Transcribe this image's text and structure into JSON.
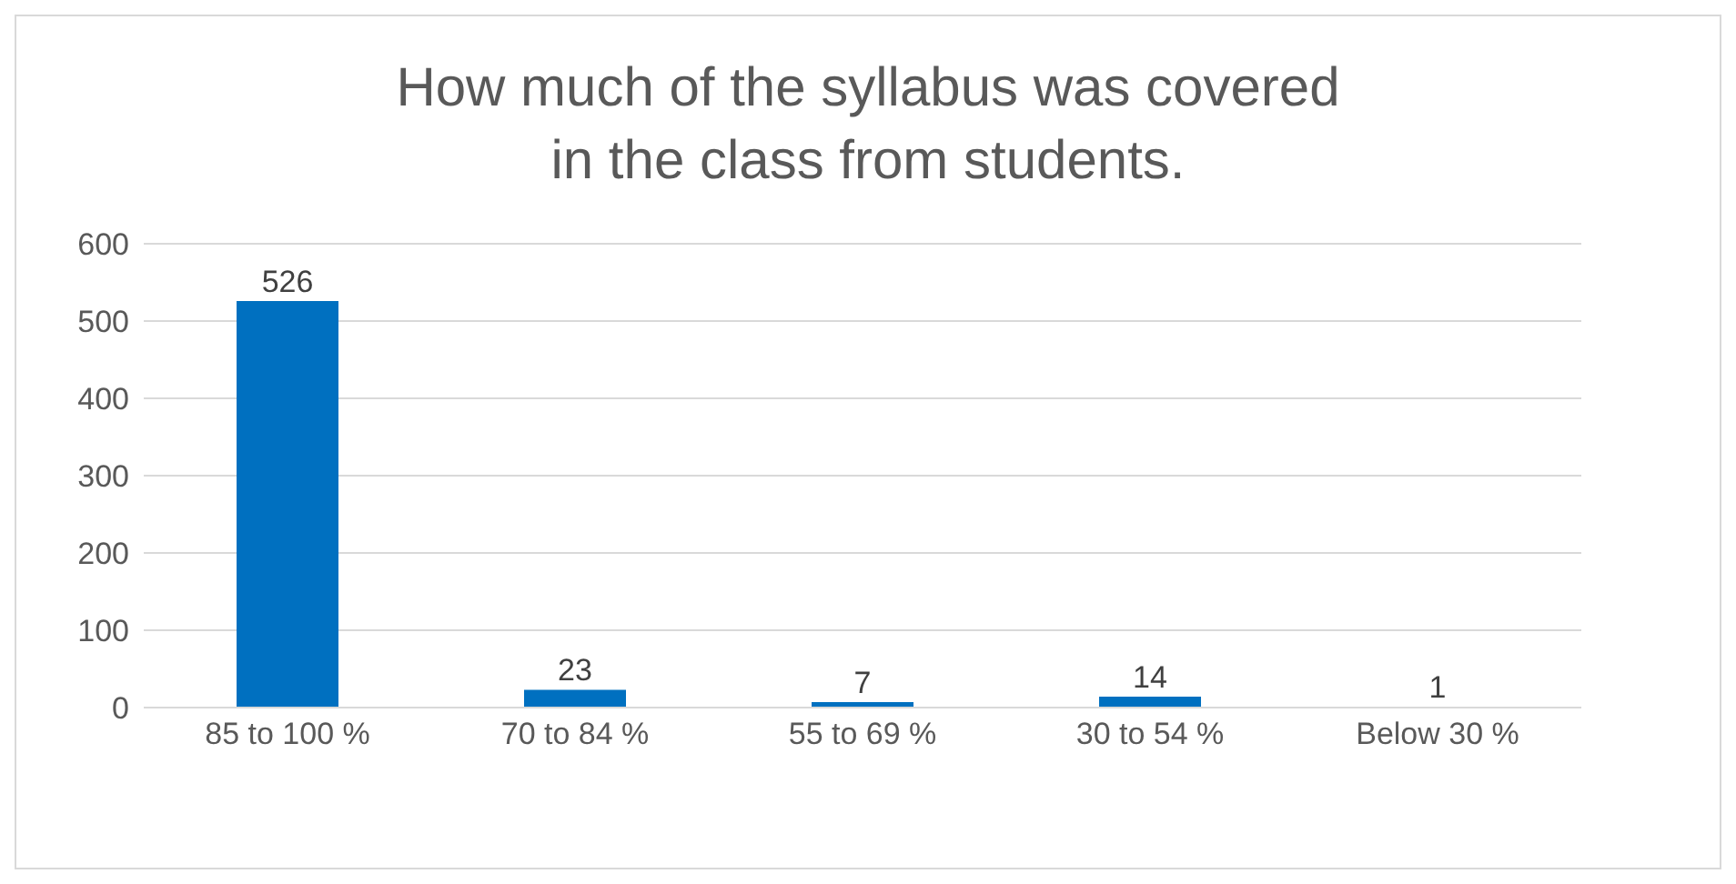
{
  "chart_data": {
    "type": "bar",
    "title": "How much of the syllabus was covered in the class from students.",
    "categories": [
      "85 to 100 %",
      "70 to 84 %",
      "55 to 69 %",
      "30 to 54 %",
      "Below 30 %"
    ],
    "values": [
      526,
      23,
      7,
      14,
      1
    ],
    "color": "#0070c0",
    "ylim": [
      0,
      600
    ],
    "yticks": [
      0,
      100,
      200,
      300,
      400,
      500,
      600
    ],
    "grid": "y",
    "data_labels": true
  }
}
